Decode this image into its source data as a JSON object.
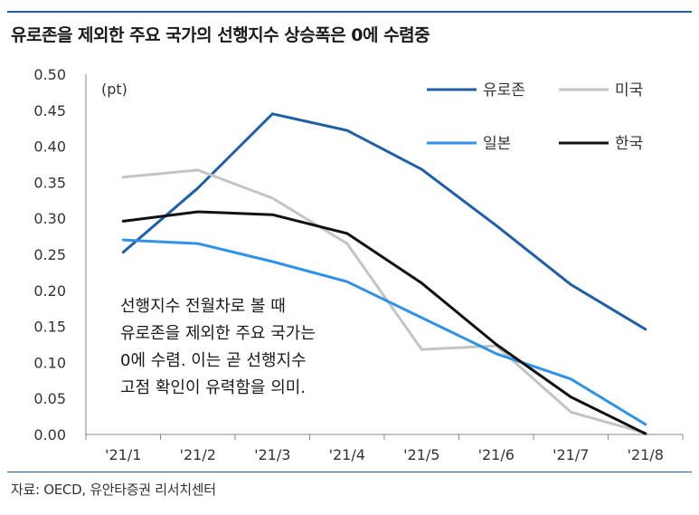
{
  "title": "유로존을 제외한 주요 국가의 선행지수 상승폭은 0에 수렴중",
  "source": "자료: OECD, 유안타증권 리서치센터",
  "chart_data": {
    "type": "line",
    "unit": "(pt)",
    "categories": [
      "'21/1",
      "'21/2",
      "'21/3",
      "'21/4",
      "'21/5",
      "'21/6",
      "'21/7",
      "'21/8"
    ],
    "y_ticks": [
      "0.00",
      "0.05",
      "0.10",
      "0.15",
      "0.20",
      "0.25",
      "0.30",
      "0.35",
      "0.40",
      "0.45",
      "0.50"
    ],
    "ylim": [
      0,
      0.5
    ],
    "legend_position": "top-right",
    "series": [
      {
        "name": "유로존",
        "color": "#1f5fa8",
        "values": [
          0.253,
          0.342,
          0.445,
          0.422,
          0.368,
          0.29,
          0.208,
          0.146
        ]
      },
      {
        "name": "미국",
        "color": "#c4c4c4",
        "values": [
          0.357,
          0.367,
          0.328,
          0.265,
          0.118,
          0.123,
          0.031,
          0.002
        ]
      },
      {
        "name": "일본",
        "color": "#2e93e8",
        "values": [
          0.27,
          0.265,
          0.24,
          0.212,
          0.162,
          0.112,
          0.077,
          0.014
        ]
      },
      {
        "name": "한국",
        "color": "#111111",
        "values": [
          0.296,
          0.309,
          0.305,
          0.279,
          0.21,
          0.125,
          0.052,
          0.001
        ]
      }
    ],
    "annotation": [
      "선행지수 전월차로 볼 때",
      "유로존을 제외한 주요 국가는",
      "0에 수렴. 이는 곧 선행지수",
      "고점 확인이 유력함을 의미."
    ]
  }
}
